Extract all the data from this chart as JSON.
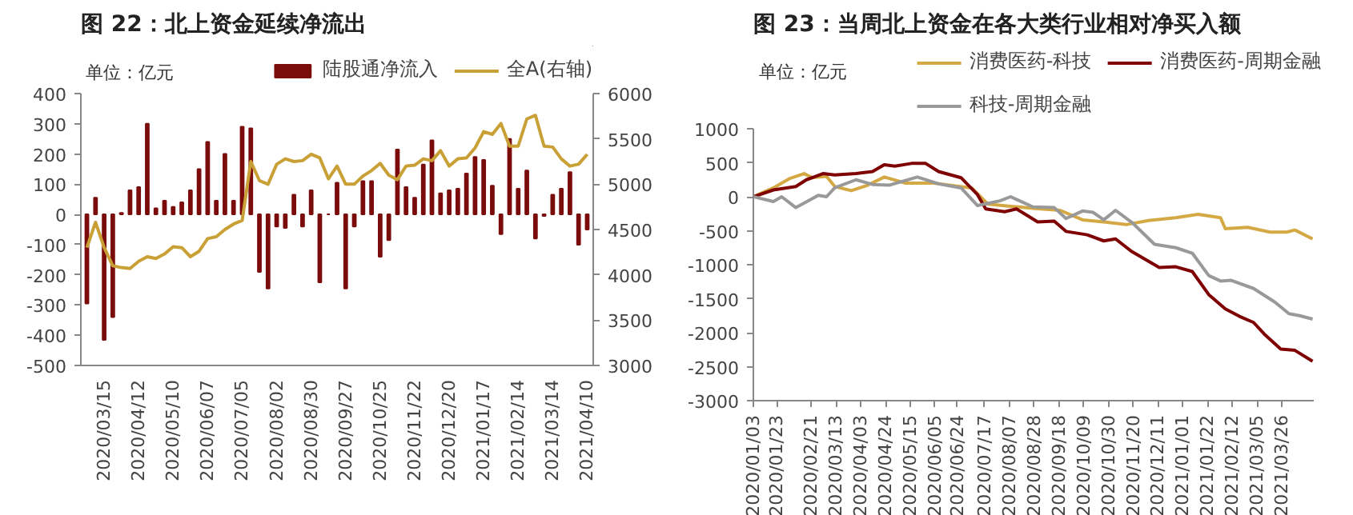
{
  "chart_data": [
    {
      "type": "bar",
      "title": "图 22：北上资金延续净流出",
      "ylabel": "单位：亿元",
      "legend": "top",
      "grid": false,
      "categories": [
        null,
        null,
        "2020/03/15",
        null,
        null,
        null,
        "2020/04/12",
        null,
        null,
        null,
        "2020/05/10",
        null,
        null,
        null,
        "2020/06/07",
        null,
        null,
        null,
        "2020/07/05",
        null,
        null,
        null,
        "2020/08/02",
        null,
        null,
        null,
        "2020/08/30",
        null,
        null,
        null,
        "2020/09/27",
        null,
        null,
        null,
        "2020/10/25",
        null,
        null,
        null,
        "2020/11/22",
        null,
        null,
        null,
        "2020/12/20",
        null,
        null,
        null,
        "2021/01/17",
        null,
        null,
        null,
        "2021/02/14",
        null,
        null,
        null,
        "2021/03/14",
        null,
        null,
        null,
        "2021/04/10"
      ],
      "ylim": [
        -500,
        400
      ],
      "yticks": [
        -500,
        -400,
        -300,
        -200,
        -100,
        0,
        100,
        200,
        300,
        400
      ],
      "y2lim": [
        3000,
        6000
      ],
      "y2ticks": [
        3000,
        3500,
        4000,
        4500,
        5000,
        5500,
        6000
      ],
      "series": [
        {
          "name": "陆股通净流入",
          "type": "bar",
          "color": "#7b0c0c",
          "values": [
            -295,
            55,
            -415,
            -340,
            5,
            80,
            90,
            300,
            20,
            45,
            25,
            40,
            80,
            150,
            240,
            45,
            200,
            45,
            290,
            285,
            -190,
            -245,
            -40,
            -45,
            65,
            -40,
            80,
            -225,
            0,
            105,
            -245,
            -40,
            110,
            110,
            -140,
            -85,
            215,
            90,
            55,
            165,
            245,
            70,
            80,
            85,
            135,
            190,
            180,
            95,
            -65,
            250,
            85,
            145,
            -80,
            -5,
            65,
            85,
            140,
            -100,
            -50
          ]
        },
        {
          "name": "全A(右轴)",
          "type": "line",
          "axis": "y2",
          "color": "#c9a035",
          "values": [
            4300,
            4580,
            4300,
            4100,
            4080,
            4070,
            4150,
            4200,
            4180,
            4230,
            4310,
            4300,
            4200,
            4260,
            4400,
            4420,
            4500,
            4560,
            4600,
            5250,
            5040,
            5000,
            5220,
            5280,
            5250,
            5260,
            5330,
            5290,
            5060,
            5200,
            5000,
            5000,
            5090,
            5150,
            5230,
            5100,
            5050,
            5200,
            5210,
            5280,
            5260,
            5370,
            5200,
            5280,
            5290,
            5400,
            5580,
            5550,
            5670,
            5420,
            5420,
            5720,
            5760,
            5420,
            5410,
            5280,
            5200,
            5220,
            5330
          ]
        }
      ]
    },
    {
      "type": "line",
      "title": "图 23：当周北上资金在各大类行业相对净买入额",
      "ylabel": "单位：亿元",
      "legend": "top",
      "grid": false,
      "xlim": [
        "2020-01-03",
        "2021-04-22"
      ],
      "xticks": [
        {
          "value": "2020-01-03",
          "label": "2020/01/03"
        },
        {
          "value": "2020-01-23",
          "label": "2020/01/23"
        },
        {
          "value": "2020-02-21",
          "label": "2020/02/21"
        },
        {
          "value": "2020-03-13",
          "label": "2020/03/13"
        },
        {
          "value": "2020-04-03",
          "label": "2020/04/03"
        },
        {
          "value": "2020-04-24",
          "label": "2020/04/24"
        },
        {
          "value": "2020-05-15",
          "label": "2020/05/15"
        },
        {
          "value": "2020-06-05",
          "label": "2020/06/05"
        },
        {
          "value": "2020-06-24",
          "label": "2020/06/24"
        },
        {
          "value": "2020-07-17",
          "label": "2020/07/17"
        },
        {
          "value": "2020-08-07",
          "label": "2020/08/07"
        },
        {
          "value": "2020-08-28",
          "label": "2020/08/28"
        },
        {
          "value": "2020-09-18",
          "label": "2020/09/18"
        },
        {
          "value": "2020-10-09",
          "label": "2020/10/09"
        },
        {
          "value": "2020-10-30",
          "label": "2020/10/30"
        },
        {
          "value": "2020-11-20",
          "label": "2020/11/20"
        },
        {
          "value": "2020-12-11",
          "label": "2020/12/11"
        },
        {
          "value": "2021-01-01",
          "label": "2021/01/01"
        },
        {
          "value": "2021-01-22",
          "label": "2021/01/22"
        },
        {
          "value": "2021-02-12",
          "label": "2021/02/12"
        },
        {
          "value": "2021-03-05",
          "label": "2021/03/05"
        },
        {
          "value": "2021-03-26",
          "label": "2021/03/26"
        }
      ],
      "ylim": [
        -3000,
        1000
      ],
      "yticks": [
        -3000,
        -2500,
        -2000,
        -1500,
        -1000,
        -500,
        0,
        500,
        1000
      ],
      "series": [
        {
          "name": "消费医药-科技",
          "color": "#d4a843",
          "x": [
            "2020-01-03",
            "2020-01-20",
            "2020-02-03",
            "2020-02-15",
            "2020-02-22",
            "2020-03-05",
            "2020-03-12",
            "2020-03-26",
            "2020-04-09",
            "2020-04-23",
            "2020-05-11",
            "2020-06-04",
            "2020-06-22",
            "2020-07-06",
            "2020-07-20",
            "2020-08-08",
            "2020-08-27",
            "2020-09-19",
            "2020-10-08",
            "2020-10-26",
            "2020-11-14",
            "2020-12-03",
            "2020-12-26",
            "2021-01-14",
            "2021-02-02",
            "2021-02-06",
            "2021-02-25",
            "2021-03-16",
            "2021-03-30",
            "2021-04-06",
            "2021-04-21"
          ],
          "values": [
            0,
            130,
            270,
            340,
            280,
            300,
            150,
            90,
            170,
            290,
            200,
            200,
            160,
            130,
            -110,
            -140,
            -170,
            -200,
            -340,
            -370,
            -410,
            -350,
            -310,
            -260,
            -310,
            -470,
            -450,
            -520,
            -520,
            -490,
            -620
          ]
        },
        {
          "name": "消费医药-周期金融",
          "color": "#7f0000",
          "x": [
            "2020-01-03",
            "2020-01-20",
            "2020-02-08",
            "2020-02-17",
            "2020-03-02",
            "2020-03-12",
            "2020-03-30",
            "2020-04-13",
            "2020-04-23",
            "2020-05-02",
            "2020-05-16",
            "2020-05-28",
            "2020-06-08",
            "2020-06-27",
            "2020-07-11",
            "2020-07-18",
            "2020-08-03",
            "2020-08-13",
            "2020-08-31",
            "2020-09-14",
            "2020-09-24",
            "2020-10-12",
            "2020-10-26",
            "2020-11-05",
            "2020-11-19",
            "2020-12-03",
            "2020-12-12",
            "2020-12-26",
            "2021-01-09",
            "2021-01-23",
            "2021-02-06",
            "2021-02-18",
            "2021-03-02",
            "2021-03-11",
            "2021-03-25",
            "2021-04-06",
            "2021-04-21"
          ],
          "values": [
            0,
            100,
            150,
            250,
            340,
            320,
            340,
            370,
            470,
            450,
            490,
            490,
            370,
            280,
            30,
            -180,
            -220,
            -180,
            -370,
            -360,
            -510,
            -560,
            -650,
            -620,
            -810,
            -950,
            -1040,
            -1030,
            -1100,
            -1440,
            -1650,
            -1760,
            -1850,
            -2020,
            -2240,
            -2260,
            -2420
          ]
        },
        {
          "name": "科技-周期金融",
          "color": "#999999",
          "x": [
            "2020-01-03",
            "2020-01-20",
            "2020-01-27",
            "2020-02-08",
            "2020-02-27",
            "2020-03-05",
            "2020-03-12",
            "2020-03-30",
            "2020-04-13",
            "2020-04-27",
            "2020-05-21",
            "2020-06-08",
            "2020-06-27",
            "2020-07-11",
            "2020-07-30",
            "2020-08-08",
            "2020-08-27",
            "2020-09-14",
            "2020-09-24",
            "2020-10-08",
            "2020-10-17",
            "2020-10-26",
            "2020-11-05",
            "2020-11-19",
            "2020-12-08",
            "2020-12-26",
            "2021-01-09",
            "2021-01-23",
            "2021-02-02",
            "2021-02-11",
            "2021-03-02",
            "2021-03-20",
            "2021-04-01",
            "2021-04-10",
            "2021-04-21"
          ],
          "values": [
            0,
            -70,
            0,
            -160,
            20,
            0,
            130,
            250,
            180,
            170,
            290,
            190,
            130,
            -130,
            -60,
            0,
            -150,
            -160,
            -320,
            -210,
            -230,
            -340,
            -200,
            -380,
            -700,
            -750,
            -830,
            -1160,
            -1240,
            -1230,
            -1350,
            -1550,
            -1720,
            -1750,
            -1800
          ]
        }
      ]
    }
  ]
}
